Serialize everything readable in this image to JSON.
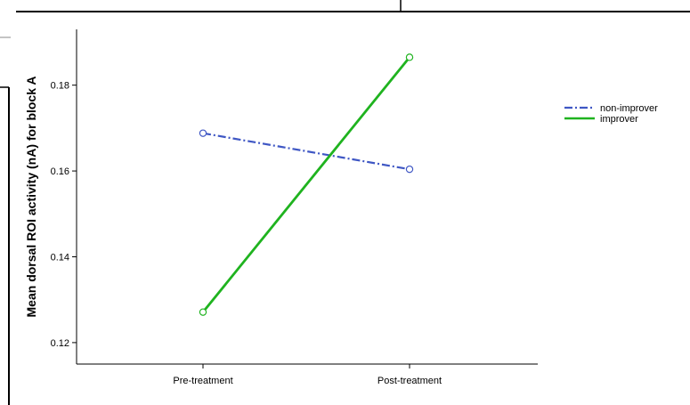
{
  "chart_data": {
    "type": "line",
    "title": "",
    "xlabel": "",
    "ylabel": "Mean dorsal ROI activity (nA) for block A",
    "categories": [
      "Pre-treatment",
      "Post-treatment"
    ],
    "ylim": [
      0.115,
      0.193
    ],
    "yticks": [
      0.12,
      0.14,
      0.16,
      0.18
    ],
    "ytick_labels": [
      "0.12",
      "0.14",
      "0.16",
      "0.18"
    ],
    "grid": false,
    "legend_position": "top-right",
    "series": [
      {
        "name": "non-improver",
        "values": [
          0.1688,
          0.1604
        ],
        "color": "#3f57c4",
        "dash": "dash-dot"
      },
      {
        "name": "improver",
        "values": [
          0.1271,
          0.1865
        ],
        "color": "#1fb31f",
        "dash": "solid"
      }
    ]
  }
}
